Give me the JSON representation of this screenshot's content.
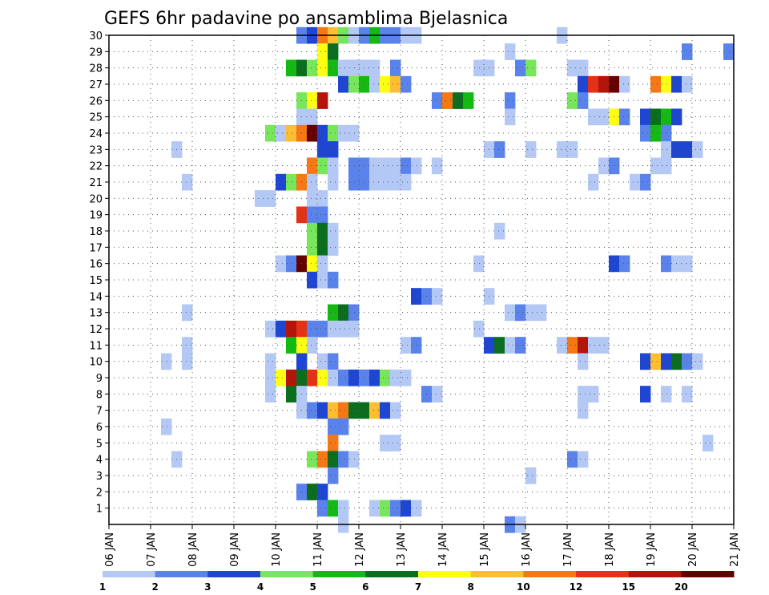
{
  "chart_data": {
    "type": "heatmap",
    "title": "GEFS 6hr padavine po ansamblima Bjelasnica",
    "xlabel": "",
    "ylabel": "",
    "x_range_days": [
      0,
      15
    ],
    "y_range": [
      0,
      30
    ],
    "x_tick_labels": [
      "06 JAN",
      "07 JAN",
      "08 JAN",
      "09 JAN",
      "10 JAN",
      "11 JAN",
      "12 JAN",
      "13 JAN",
      "14 JAN",
      "15 JAN",
      "16 JAN",
      "17 JAN",
      "18 JAN",
      "19 JAN",
      "20 JAN",
      "21 JAN"
    ],
    "y_tick_labels": [
      "1",
      "2",
      "3",
      "4",
      "5",
      "6",
      "7",
      "8",
      "9",
      "10",
      "11",
      "12",
      "13",
      "14",
      "15",
      "16",
      "17",
      "18",
      "19",
      "20",
      "21",
      "22",
      "23",
      "24",
      "25",
      "26",
      "27",
      "28",
      "29",
      "30"
    ],
    "grid": true,
    "colorbar": {
      "placement": "bottom",
      "labels": [
        "1",
        "2",
        "3",
        "4",
        "5",
        "6",
        "7",
        "8",
        "10",
        "12",
        "15",
        "20"
      ],
      "colors": [
        "#b4c8f5",
        "#5a82eb",
        "#1e46d2",
        "#78e65a",
        "#14b914",
        "#0a6e1e",
        "#ffff14",
        "#ffbe32",
        "#f57814",
        "#e63214",
        "#b4140a",
        "#640000"
      ]
    },
    "time_step_days": 0.25,
    "cells": [
      [
        30,
        4.5,
        2
      ],
      [
        30,
        4.75,
        3
      ],
      [
        30,
        5.0,
        9
      ],
      [
        30,
        5.25,
        8
      ],
      [
        30,
        5.5,
        4
      ],
      [
        30,
        5.75,
        1
      ],
      [
        30,
        6.0,
        2
      ],
      [
        30,
        6.25,
        5
      ],
      [
        30,
        6.5,
        2
      ],
      [
        30,
        6.75,
        2
      ],
      [
        30,
        7.0,
        1
      ],
      [
        30,
        7.25,
        1
      ],
      [
        30,
        10.75,
        1
      ],
      [
        29,
        5.0,
        7
      ],
      [
        29,
        5.25,
        6
      ],
      [
        29,
        9.5,
        1
      ],
      [
        29,
        13.75,
        2
      ],
      [
        29,
        14.75,
        2
      ],
      [
        28,
        4.25,
        5
      ],
      [
        28,
        4.5,
        6
      ],
      [
        28,
        4.75,
        4
      ],
      [
        28,
        5.0,
        7
      ],
      [
        28,
        5.25,
        5
      ],
      [
        28,
        5.5,
        1
      ],
      [
        28,
        5.75,
        1
      ],
      [
        28,
        6.0,
        1
      ],
      [
        28,
        6.25,
        1
      ],
      [
        28,
        6.75,
        2
      ],
      [
        28,
        8.75,
        1
      ],
      [
        28,
        9.0,
        1
      ],
      [
        28,
        9.75,
        2
      ],
      [
        28,
        10.0,
        4
      ],
      [
        28,
        11.0,
        1
      ],
      [
        28,
        11.25,
        1
      ],
      [
        27,
        5.5,
        3
      ],
      [
        27,
        5.75,
        4
      ],
      [
        27,
        6.0,
        5
      ],
      [
        27,
        6.25,
        1
      ],
      [
        27,
        6.5,
        7
      ],
      [
        27,
        6.75,
        8
      ],
      [
        27,
        7.0,
        2
      ],
      [
        27,
        11.25,
        3
      ],
      [
        27,
        11.5,
        10
      ],
      [
        27,
        11.75,
        11
      ],
      [
        27,
        12.0,
        12
      ],
      [
        27,
        12.25,
        1
      ],
      [
        27,
        13.0,
        9
      ],
      [
        27,
        13.25,
        7
      ],
      [
        27,
        13.5,
        3
      ],
      [
        27,
        13.75,
        1
      ],
      [
        26,
        4.5,
        4
      ],
      [
        26,
        4.75,
        7
      ],
      [
        26,
        5.0,
        11
      ],
      [
        26,
        7.75,
        2
      ],
      [
        26,
        8.0,
        9
      ],
      [
        26,
        8.25,
        6
      ],
      [
        26,
        8.5,
        5
      ],
      [
        26,
        9.5,
        2
      ],
      [
        26,
        11.0,
        4
      ],
      [
        26,
        11.25,
        2
      ],
      [
        25,
        4.5,
        1
      ],
      [
        25,
        4.75,
        1
      ],
      [
        25,
        9.5,
        1
      ],
      [
        25,
        11.5,
        1
      ],
      [
        25,
        11.75,
        1
      ],
      [
        25,
        12.0,
        7
      ],
      [
        25,
        12.25,
        2
      ],
      [
        25,
        12.75,
        3
      ],
      [
        25,
        13.0,
        6
      ],
      [
        25,
        13.25,
        5
      ],
      [
        25,
        13.5,
        3
      ],
      [
        24,
        3.75,
        4
      ],
      [
        24,
        4.0,
        1
      ],
      [
        24,
        4.25,
        8
      ],
      [
        24,
        4.5,
        9
      ],
      [
        24,
        4.75,
        12
      ],
      [
        24,
        5.0,
        3
      ],
      [
        24,
        5.25,
        4
      ],
      [
        24,
        5.5,
        1
      ],
      [
        24,
        5.75,
        1
      ],
      [
        24,
        12.75,
        2
      ],
      [
        24,
        13.0,
        5
      ],
      [
        24,
        13.25,
        2
      ],
      [
        23,
        1.5,
        1
      ],
      [
        23,
        5.0,
        3
      ],
      [
        23,
        5.25,
        3
      ],
      [
        23,
        9.0,
        1
      ],
      [
        23,
        9.25,
        2
      ],
      [
        23,
        10.0,
        1
      ],
      [
        23,
        10.75,
        1
      ],
      [
        23,
        11.0,
        1
      ],
      [
        23,
        13.25,
        1
      ],
      [
        23,
        13.5,
        3
      ],
      [
        23,
        13.75,
        3
      ],
      [
        23,
        14.0,
        1
      ],
      [
        22,
        4.75,
        9
      ],
      [
        22,
        5.0,
        4
      ],
      [
        22,
        5.25,
        1
      ],
      [
        22,
        5.75,
        2
      ],
      [
        22,
        6.0,
        2
      ],
      [
        22,
        6.25,
        1
      ],
      [
        22,
        6.5,
        1
      ],
      [
        22,
        6.75,
        1
      ],
      [
        22,
        7.0,
        2
      ],
      [
        22,
        7.25,
        1
      ],
      [
        22,
        7.75,
        1
      ],
      [
        22,
        11.75,
        1
      ],
      [
        22,
        12.0,
        2
      ],
      [
        22,
        13.0,
        1
      ],
      [
        22,
        13.25,
        1
      ],
      [
        21,
        1.75,
        1
      ],
      [
        21,
        4.0,
        3
      ],
      [
        21,
        4.25,
        4
      ],
      [
        21,
        4.5,
        9
      ],
      [
        21,
        4.75,
        1
      ],
      [
        21,
        5.25,
        1
      ],
      [
        21,
        5.75,
        2
      ],
      [
        21,
        6.0,
        2
      ],
      [
        21,
        6.25,
        1
      ],
      [
        21,
        6.5,
        1
      ],
      [
        21,
        6.75,
        1
      ],
      [
        21,
        7.0,
        1
      ],
      [
        21,
        11.5,
        1
      ],
      [
        21,
        12.5,
        1
      ],
      [
        21,
        12.75,
        2
      ],
      [
        20,
        3.5,
        1
      ],
      [
        20,
        3.75,
        1
      ],
      [
        20,
        4.75,
        1
      ],
      [
        20,
        5.0,
        1
      ],
      [
        19,
        4.5,
        10
      ],
      [
        19,
        4.75,
        2
      ],
      [
        19,
        5.0,
        2
      ],
      [
        18,
        4.75,
        4
      ],
      [
        18,
        5.0,
        6
      ],
      [
        18,
        5.25,
        1
      ],
      [
        18,
        9.25,
        1
      ],
      [
        17,
        4.75,
        4
      ],
      [
        17,
        5.0,
        6
      ],
      [
        17,
        5.25,
        1
      ],
      [
        16,
        4.0,
        1
      ],
      [
        16,
        4.25,
        2
      ],
      [
        16,
        4.5,
        12
      ],
      [
        16,
        4.75,
        7
      ],
      [
        16,
        5.0,
        1
      ],
      [
        16,
        8.75,
        1
      ],
      [
        16,
        12.0,
        3
      ],
      [
        16,
        12.25,
        2
      ],
      [
        16,
        13.25,
        2
      ],
      [
        16,
        13.5,
        1
      ],
      [
        16,
        13.75,
        1
      ],
      [
        15,
        4.75,
        3
      ],
      [
        15,
        5.0,
        1
      ],
      [
        15,
        5.25,
        2
      ],
      [
        14,
        7.25,
        3
      ],
      [
        14,
        7.5,
        2
      ],
      [
        14,
        7.75,
        1
      ],
      [
        14,
        9.0,
        1
      ],
      [
        13,
        1.75,
        1
      ],
      [
        13,
        5.25,
        5
      ],
      [
        13,
        5.5,
        6
      ],
      [
        13,
        5.75,
        2
      ],
      [
        13,
        9.5,
        1
      ],
      [
        13,
        9.75,
        2
      ],
      [
        13,
        10.0,
        1
      ],
      [
        13,
        10.25,
        1
      ],
      [
        12,
        3.75,
        1
      ],
      [
        12,
        4.0,
        3
      ],
      [
        12,
        4.25,
        11
      ],
      [
        12,
        4.5,
        10
      ],
      [
        12,
        4.75,
        2
      ],
      [
        12,
        5.0,
        2
      ],
      [
        12,
        5.25,
        1
      ],
      [
        12,
        5.5,
        1
      ],
      [
        12,
        5.75,
        1
      ],
      [
        12,
        8.75,
        1
      ],
      [
        11,
        1.75,
        1
      ],
      [
        11,
        4.25,
        5
      ],
      [
        11,
        4.5,
        7
      ],
      [
        11,
        4.75,
        1
      ],
      [
        11,
        7.0,
        1
      ],
      [
        11,
        7.25,
        2
      ],
      [
        11,
        9.0,
        3
      ],
      [
        11,
        9.25,
        6
      ],
      [
        11,
        9.5,
        1
      ],
      [
        11,
        9.75,
        2
      ],
      [
        11,
        10.75,
        1
      ],
      [
        11,
        11.0,
        9
      ],
      [
        11,
        11.25,
        11
      ],
      [
        11,
        11.5,
        1
      ],
      [
        11,
        11.75,
        1
      ],
      [
        10,
        1.25,
        1
      ],
      [
        10,
        1.75,
        1
      ],
      [
        10,
        3.75,
        1
      ],
      [
        10,
        4.5,
        3
      ],
      [
        10,
        5.0,
        1
      ],
      [
        10,
        5.25,
        2
      ],
      [
        10,
        11.25,
        1
      ],
      [
        10,
        12.75,
        3
      ],
      [
        10,
        13.0,
        8
      ],
      [
        10,
        13.25,
        3
      ],
      [
        10,
        13.5,
        6
      ],
      [
        10,
        13.75,
        2
      ],
      [
        10,
        14.0,
        1
      ],
      [
        9,
        3.75,
        1
      ],
      [
        9,
        4.0,
        7
      ],
      [
        9,
        4.25,
        11
      ],
      [
        9,
        4.5,
        6
      ],
      [
        9,
        4.75,
        10
      ],
      [
        9,
        5.0,
        7
      ],
      [
        9,
        5.25,
        1
      ],
      [
        9,
        5.5,
        2
      ],
      [
        9,
        5.75,
        3
      ],
      [
        9,
        6.0,
        2
      ],
      [
        9,
        6.25,
        3
      ],
      [
        9,
        6.5,
        4
      ],
      [
        9,
        6.75,
        1
      ],
      [
        9,
        7.0,
        1
      ],
      [
        8,
        3.75,
        1
      ],
      [
        8,
        4.25,
        6
      ],
      [
        8,
        4.5,
        1
      ],
      [
        8,
        7.5,
        2
      ],
      [
        8,
        7.75,
        1
      ],
      [
        8,
        11.25,
        1
      ],
      [
        8,
        11.5,
        1
      ],
      [
        8,
        12.75,
        3
      ],
      [
        8,
        13.25,
        1
      ],
      [
        8,
        13.75,
        1
      ],
      [
        7,
        4.5,
        1
      ],
      [
        7,
        4.75,
        2
      ],
      [
        7,
        5.0,
        3
      ],
      [
        7,
        5.25,
        8
      ],
      [
        7,
        5.5,
        9
      ],
      [
        7,
        5.75,
        6
      ],
      [
        7,
        6.0,
        6
      ],
      [
        7,
        6.25,
        8
      ],
      [
        7,
        6.5,
        3
      ],
      [
        7,
        6.75,
        1
      ],
      [
        7,
        11.25,
        1
      ],
      [
        6,
        1.25,
        1
      ],
      [
        6,
        5.25,
        2
      ],
      [
        6,
        5.5,
        2
      ],
      [
        5,
        5.25,
        9
      ],
      [
        5,
        6.5,
        1
      ],
      [
        5,
        6.75,
        1
      ],
      [
        5,
        14.25,
        1
      ],
      [
        4,
        1.5,
        1
      ],
      [
        4,
        4.75,
        4
      ],
      [
        4,
        5.0,
        9
      ],
      [
        4,
        5.25,
        6
      ],
      [
        4,
        5.5,
        2
      ],
      [
        4,
        5.75,
        1
      ],
      [
        4,
        11.0,
        2
      ],
      [
        4,
        11.25,
        1
      ],
      [
        3,
        5.25,
        2
      ],
      [
        3,
        10.0,
        1
      ],
      [
        2,
        4.5,
        2
      ],
      [
        2,
        4.75,
        6
      ],
      [
        2,
        5.0,
        3
      ],
      [
        1,
        5.0,
        2
      ],
      [
        1,
        5.25,
        5
      ],
      [
        1,
        5.5,
        1
      ],
      [
        1,
        6.25,
        1
      ],
      [
        1,
        6.5,
        4
      ],
      [
        1,
        6.75,
        2
      ],
      [
        1,
        7.0,
        3
      ],
      [
        1,
        7.25,
        1
      ],
      [
        0,
        5.5,
        1
      ],
      [
        0,
        9.5,
        2
      ],
      [
        0,
        9.75,
        1
      ]
    ]
  }
}
